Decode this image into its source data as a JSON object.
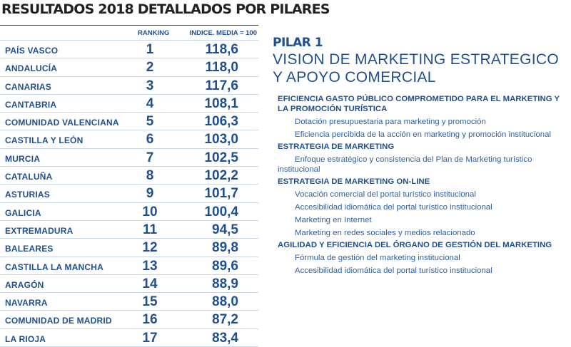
{
  "title": "RESULTADOS 2018 DETALLADOS POR PILARES",
  "table": {
    "header_rank": "RANKING",
    "header_index": "INDICE. MEDIA = 100",
    "rows": [
      {
        "region": "PAÍS VASCO",
        "rank": "1",
        "value": "118,6"
      },
      {
        "region": "ANDALUCÍA",
        "rank": "2",
        "value": "118,0"
      },
      {
        "region": "CANARIAS",
        "rank": "3",
        "value": "117,6"
      },
      {
        "region": "CANTABRIA",
        "rank": "4",
        "value": "108,1"
      },
      {
        "region": "COMUNIDAD VALENCIANA",
        "rank": "5",
        "value": "106,3"
      },
      {
        "region": "CASTILLA Y LEÓN",
        "rank": "6",
        "value": "103,0"
      },
      {
        "region": "MURCIA",
        "rank": "7",
        "value": "102,5"
      },
      {
        "region": "CATALUÑA",
        "rank": "8",
        "value": "102,2"
      },
      {
        "region": "ASTURIAS",
        "rank": "9",
        "value": "101,7"
      },
      {
        "region": "GALICIA",
        "rank": "10",
        "value": "100,4"
      },
      {
        "region": "EXTREMADURA",
        "rank": "11",
        "value": "94,5"
      },
      {
        "region": "BALEARES",
        "rank": "12",
        "value": "89,8"
      },
      {
        "region": "CASTILLA LA MANCHA",
        "rank": "13",
        "value": "89,6"
      },
      {
        "region": "ARAGÓN",
        "rank": "14",
        "value": "88,9"
      },
      {
        "region": "NAVARRA",
        "rank": "15",
        "value": "88,0"
      },
      {
        "region": "COMUNIDAD DE MADRID",
        "rank": "16",
        "value": "87,2"
      },
      {
        "region": "LA RIOJA",
        "rank": "17",
        "value": "83,4"
      }
    ]
  },
  "pillar": {
    "label": "PILAR 1",
    "title_line1": "VISION DE MARKETING ESTRATEGICO",
    "title_line2": "Y APOYO COMERCIAL",
    "sections": [
      {
        "heading": "EFICIENCIA GASTO PÚBLICO COMPROMETIDO PARA EL MARKETING Y LA PROMOCIÓN TURÍSTICA",
        "items": [
          "Dotación presupuestaria para marketing y promoción",
          "Eficiencia percibida de la acción en marketing y promoción institucional"
        ]
      },
      {
        "heading": "ESTRATEGIA DE MARKETING",
        "items": [
          "Enfoque estratégico y consistencia del Plan de Marketing turístico institucional"
        ]
      },
      {
        "heading": "ESTRATEGIA DE MARKETING ON-LINE",
        "items": [
          "Vocación comercial del portal turístico institucional",
          "Accesibilidad idiomática del portal turístico institucional",
          "Marketing en Internet",
          "Marketing en redes sociales y medios relacionado"
        ]
      },
      {
        "heading": "AGILIDAD Y EFICIENCIA DEL ÓRGANO DE GESTIÓN DEL MARKETING",
        "items": [
          "Fórmula de gestión del marketing institucional",
          "Accesibilidad idiomática del portal turístico institucional"
        ]
      }
    ]
  }
}
